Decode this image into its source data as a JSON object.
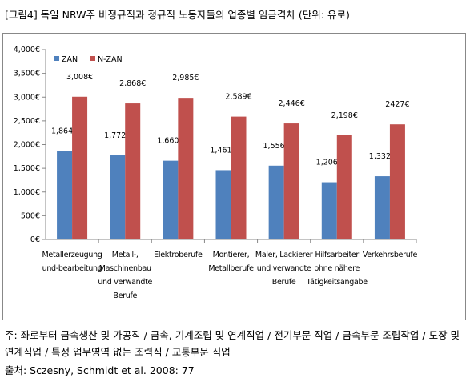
{
  "chart_data": {
    "type": "bar",
    "title": "[그림4] 독일 NRW주 비정규직과 정규직 노동자들의 업종별 임금격차 (단위: 유로)",
    "categories": [
      "Metallerzeugung und-bearbeitung",
      "Metall-, Maschinenbau und verwandte Berufe",
      "Elektroberufe",
      "Montierer, Metallberufe",
      "Maler, Lackierer und verwandte Berufe",
      "Hilfsarbeiter ohne nähere Tätigkeitsangabe",
      "Verkehrsberufe"
    ],
    "series": [
      {
        "name": "ZAN",
        "color": "#4f81bd",
        "values": [
          1864,
          1772,
          1660,
          1461,
          1556,
          1206,
          1332
        ],
        "value_labels": [
          "1,864€",
          "1,772€",
          "1,660€",
          "1,461€",
          "1,556€",
          "1,206€",
          "1,332€"
        ]
      },
      {
        "name": "N-ZAN",
        "color": "#c0504d",
        "values": [
          3008,
          2868,
          2985,
          2589,
          2446,
          2198,
          2427
        ],
        "value_labels": [
          "3,008€",
          "2,868€",
          "2,985€",
          "2,589€",
          "2,446€",
          "2,198€",
          "2427€"
        ]
      }
    ],
    "ylim": [
      0,
      4000
    ],
    "yticks": [
      {
        "value": 0,
        "label": "0€"
      },
      {
        "value": 500,
        "label": "500€"
      },
      {
        "value": 1000,
        "label": "1,000€"
      },
      {
        "value": 1500,
        "label": "1,500€"
      },
      {
        "value": 2000,
        "label": "2,000€"
      },
      {
        "value": 2500,
        "label": "2,500€"
      },
      {
        "value": 3000,
        "label": "3,000€"
      },
      {
        "value": 3500,
        "label": "3,500€"
      },
      {
        "value": 4000,
        "label": "4,000€"
      }
    ],
    "legend": "top-left",
    "note": "주: 좌로부터 금속생산 및 가공직 / 금속, 기계조립 및 연계직업 / 전기부문 직업 / 금속부문 조립작업 / 도장 및 연계직업 / 특정 업무영역 없는 조력직 / 교통부문 직업",
    "source": "출처: Sczesny, Schmidt et al. 2008: 77"
  }
}
